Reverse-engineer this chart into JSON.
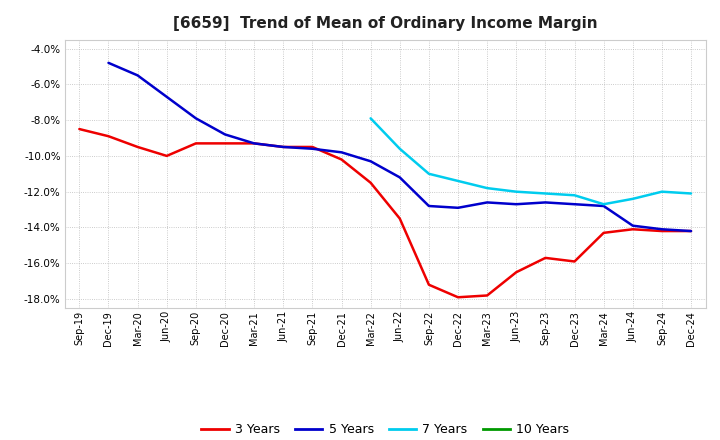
{
  "title": "[6659]  Trend of Mean of Ordinary Income Margin",
  "x_labels": [
    "Sep-19",
    "Dec-19",
    "Mar-20",
    "Jun-20",
    "Sep-20",
    "Dec-20",
    "Mar-21",
    "Jun-21",
    "Sep-21",
    "Dec-21",
    "Mar-22",
    "Jun-22",
    "Sep-22",
    "Dec-22",
    "Mar-23",
    "Jun-23",
    "Sep-23",
    "Dec-23",
    "Mar-24",
    "Jun-24",
    "Sep-24",
    "Dec-24"
  ],
  "ylim": [
    -18.5,
    -3.5
  ],
  "yticks": [
    -18.0,
    -16.0,
    -14.0,
    -12.0,
    -10.0,
    -8.0,
    -6.0,
    -4.0
  ],
  "series": {
    "3 Years": {
      "color": "#EE0000",
      "data_x": [
        0,
        1,
        2,
        3,
        4,
        5,
        6,
        7,
        8,
        9,
        10,
        11,
        12,
        13,
        14,
        15,
        16,
        17,
        18,
        19,
        20,
        21
      ],
      "data_y": [
        -8.5,
        -8.9,
        -9.5,
        -10.0,
        -9.3,
        -9.3,
        -9.3,
        -9.5,
        -9.5,
        -10.2,
        -11.5,
        -13.5,
        -17.2,
        -17.9,
        -17.8,
        -16.5,
        -15.7,
        -15.9,
        -14.3,
        -14.1,
        -14.2,
        -14.2
      ]
    },
    "5 Years": {
      "color": "#0000CC",
      "data_x": [
        1,
        2,
        3,
        4,
        5,
        6,
        7,
        8,
        9,
        10,
        11,
        12,
        13,
        14,
        15,
        16,
        17,
        18,
        19,
        20,
        21
      ],
      "data_y": [
        -4.8,
        -5.5,
        -6.7,
        -7.9,
        -8.8,
        -9.3,
        -9.5,
        -9.6,
        -9.8,
        -10.3,
        -11.2,
        -12.8,
        -12.9,
        -12.6,
        -12.7,
        -12.6,
        -12.7,
        -12.8,
        -13.9,
        -14.1,
        -14.2
      ]
    },
    "7 Years": {
      "color": "#00CCEE",
      "data_x": [
        10,
        11,
        12,
        13,
        14,
        15,
        16,
        17,
        18,
        19,
        20,
        21
      ],
      "data_y": [
        -7.9,
        -9.6,
        -11.0,
        -11.4,
        -11.8,
        -12.0,
        -12.1,
        -12.2,
        -12.7,
        -12.4,
        -12.0,
        -12.1
      ]
    },
    "10 Years": {
      "color": "#009900",
      "data_x": [],
      "data_y": []
    }
  },
  "background_color": "#FFFFFF",
  "plot_bg_color": "#FFFFFF",
  "grid_color": "#AAAAAA",
  "title_fontsize": 11,
  "tick_fontsize": 7,
  "legend_fontsize": 9
}
